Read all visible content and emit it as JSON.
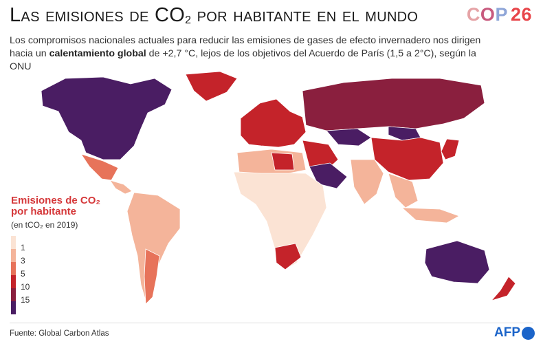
{
  "title": {
    "main": "Las emisiones de CO",
    "sub": "2",
    "rest": " por habitante en el mundo"
  },
  "logo": {
    "c": "C",
    "o": "O",
    "p": "P",
    "number": "26"
  },
  "subtitle": {
    "part1": "Los compromisos nacionales actuales para reducir las emisiones de gases de efecto invernadero nos dirigen hacia un ",
    "bold": "calentamiento global",
    "part2": " de +2,7 °C, lejos de los objetivos del Acuerdo de París (1,5 a 2°C), según la ONU"
  },
  "legend": {
    "title_line1": "Emisiones de CO₂",
    "title_line2": "por habitante",
    "unit": "(en tCO₂ en 2019)",
    "labels": [
      "1",
      "3",
      "5",
      "10",
      "15"
    ],
    "colors": [
      "#fbe3d4",
      "#f4b49a",
      "#e7735a",
      "#c4232a",
      "#8a1f3e",
      "#4a1d63"
    ]
  },
  "regions": [
    {
      "name": "north-america",
      "class": 5
    },
    {
      "name": "greenland",
      "class": 3
    },
    {
      "name": "mexico",
      "class": 2
    },
    {
      "name": "central-america",
      "class": 1
    },
    {
      "name": "south-america",
      "class": 1
    },
    {
      "name": "argentina",
      "class": 2
    },
    {
      "name": "europe-west",
      "class": 3
    },
    {
      "name": "russia",
      "class": 4
    },
    {
      "name": "kazakhstan",
      "class": 5
    },
    {
      "name": "mongolia",
      "class": 5
    },
    {
      "name": "china",
      "class": 3
    },
    {
      "name": "japan-korea",
      "class": 3
    },
    {
      "name": "middle-east",
      "class": 3
    },
    {
      "name": "saudi-arabia",
      "class": 5
    },
    {
      "name": "india",
      "class": 1
    },
    {
      "name": "southeast-asia",
      "class": 1
    },
    {
      "name": "africa",
      "class": 0
    },
    {
      "name": "north-africa",
      "class": 1
    },
    {
      "name": "libya",
      "class": 3
    },
    {
      "name": "south-africa",
      "class": 3
    },
    {
      "name": "australia",
      "class": 5
    },
    {
      "name": "new-zealand",
      "class": 3
    },
    {
      "name": "indonesia",
      "class": 1
    }
  ],
  "source": "Fuente: Global Carbon Atlas",
  "credit": "AFP"
}
